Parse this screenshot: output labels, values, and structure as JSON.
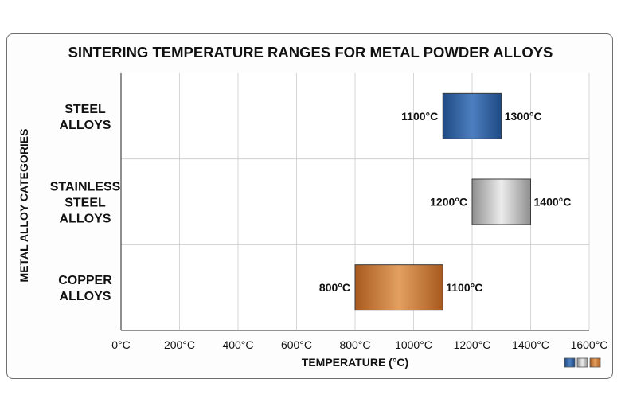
{
  "chart_data": {
    "type": "bar",
    "orientation": "horizontal-range",
    "title": "SINTERING TEMPERATURE RANGES FOR METAL POWDER ALLOYS",
    "xlabel": "TEMPERATURE (°C)",
    "ylabel": "METAL ALLOY CATEGORIES",
    "xlim": [
      0,
      1600
    ],
    "x_ticks": [
      "0°C",
      "200°C",
      "400°C",
      "600°C",
      "800°C",
      "1000°C",
      "1200°C",
      "1400°C",
      "1600°C"
    ],
    "grid": true,
    "categories": [
      {
        "label_lines": [
          "STEEL",
          "ALLOYS"
        ],
        "min": 1100,
        "max": 1300,
        "min_label": "1100°C",
        "max_label": "1300°C",
        "color": "#2f5f9c"
      },
      {
        "label_lines": [
          "STAINLESS",
          "STEEL",
          "ALLOYS"
        ],
        "min": 1200,
        "max": 1400,
        "min_label": "1200°C",
        "max_label": "1400°C",
        "color": "#b4b4b4"
      },
      {
        "label_lines": [
          "COPPER",
          "ALLOYS"
        ],
        "min": 800,
        "max": 1100,
        "min_label": "800°C",
        "max_label": "1100°C",
        "color": "#c77a32"
      }
    ],
    "legend_colors": [
      "#2f5f9c",
      "#b4b4b4",
      "#c77a32"
    ]
  }
}
